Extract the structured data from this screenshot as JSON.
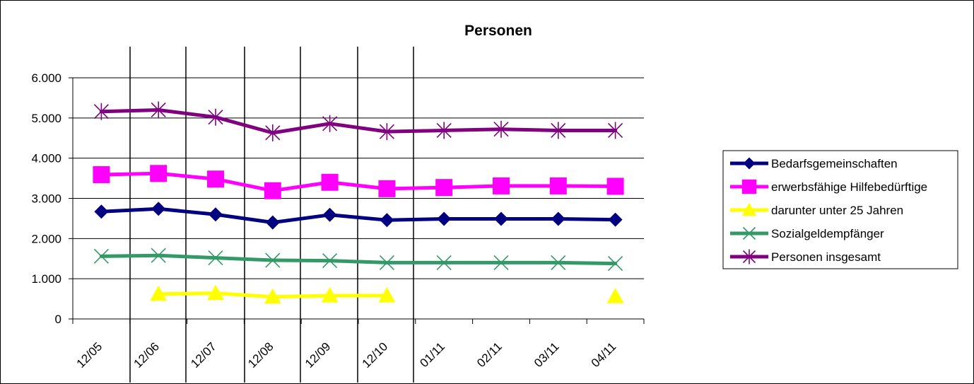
{
  "chart_data": {
    "type": "line",
    "title": "Personen",
    "categories": [
      "12/05",
      "12/06",
      "12/07",
      "12/08",
      "12/09",
      "12/10",
      "01/11",
      "02/11",
      "03/11",
      "04/11"
    ],
    "ylim": [
      0,
      6000
    ],
    "yticks": [
      0,
      1000,
      2000,
      3000,
      4000,
      5000,
      6000
    ],
    "ytick_labels": [
      "0",
      "1.000",
      "2.000",
      "3.000",
      "4.000",
      "5.000",
      "6.000"
    ],
    "grid": true,
    "legend_position": "right",
    "series": [
      {
        "name": "Bedarfsgemeinschaften",
        "color": "#000080",
        "marker": "diamond",
        "values": [
          2670,
          2740,
          2600,
          2400,
          2590,
          2460,
          2490,
          2490,
          2490,
          2470
        ]
      },
      {
        "name": "erwerbsfähige Hilfebedürftige",
        "color": "#ff00ff",
        "marker": "square",
        "values": [
          3590,
          3620,
          3480,
          3190,
          3400,
          3240,
          3270,
          3310,
          3310,
          3300
        ]
      },
      {
        "name": "darunter unter 25 Jahren",
        "color": "#ffff00",
        "marker": "triangle",
        "values": [
          null,
          620,
          640,
          550,
          580,
          580,
          null,
          null,
          null,
          560
        ]
      },
      {
        "name": "Sozialgeldempfänger",
        "color": "#339966",
        "marker": "x",
        "values": [
          1560,
          1580,
          1520,
          1460,
          1450,
          1400,
          1400,
          1400,
          1400,
          1380
        ]
      },
      {
        "name": "Personen insgesamt",
        "color": "#800080",
        "marker": "star",
        "values": [
          5160,
          5200,
          5020,
          4630,
          4860,
          4660,
          4690,
          4720,
          4690,
          4690
        ]
      }
    ]
  }
}
